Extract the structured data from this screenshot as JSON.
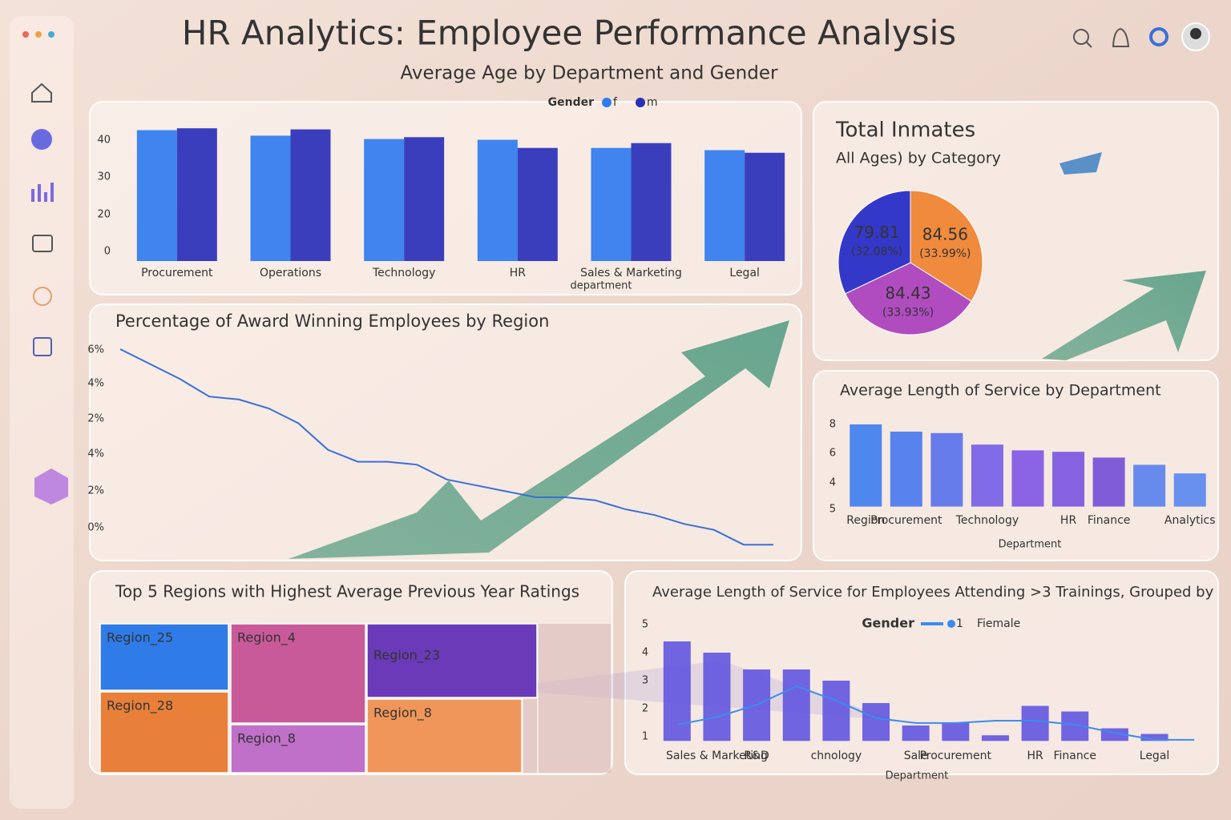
{
  "header": {
    "title": "HR Analytics: Employee Performance Analysis",
    "subtitle": "Average Age by Department and Gender"
  },
  "chart_data": [
    {
      "type": "bar",
      "legend_title": "Gender",
      "xlabel": "department",
      "categories": [
        "Procurement",
        "Operations",
        "Technology",
        "HR",
        "Sales & Marketing",
        "Legal"
      ],
      "series": [
        {
          "name": "f",
          "color": "#2f7bf0",
          "values": [
            42.8,
            41.3,
            40.4,
            40.2,
            38.0,
            37.4
          ]
        },
        {
          "name": "m",
          "color": "#2a2fb8",
          "values": [
            43.3,
            43.0,
            40.9,
            38.0,
            39.3,
            36.7
          ]
        }
      ],
      "ylim": [
        7.5,
        45.5
      ],
      "y_axis_labels": [
        "0",
        "20",
        "30",
        "40"
      ]
    },
    {
      "type": "line",
      "title": "Percentage of Award Winning Employees by Region",
      "categories": [
        null,
        null,
        null,
        null,
        null,
        null,
        null,
        null,
        null,
        null,
        null,
        null,
        null,
        null,
        null,
        null,
        null,
        null,
        null,
        null,
        null,
        null,
        null
      ],
      "series": [
        {
          "color": "#3a6fd8",
          "values": [
            6.0,
            5.5,
            5.0,
            4.4,
            4.3,
            4.0,
            3.5,
            2.6,
            2.2,
            2.2,
            2.1,
            1.6,
            1.4,
            1.2,
            1.0,
            1.0,
            0.9,
            0.6,
            0.4,
            0.1,
            -0.1,
            -0.6,
            -0.6
          ]
        }
      ],
      "ylim": [
        -1,
        6.5
      ],
      "y_axis_labels": [
        "6%",
        "4%",
        "2%",
        "4%",
        "2%",
        "0%"
      ]
    },
    {
      "type": "pie",
      "title": "Total Inmates",
      "subtitle": "All Ages) by Category",
      "categories": [
        null,
        null,
        null
      ],
      "values": [
        84.56,
        84.43,
        79.81
      ],
      "percent_labels": [
        "(33.99%)",
        "(33.93%)",
        "(32.08%)"
      ],
      "colors": [
        "#f08a3c",
        "#b04cc0",
        "#3438c8"
      ]
    },
    {
      "type": "bar",
      "title": "Average Length of Service by Department",
      "xlabel": "Department",
      "categories": [
        "Region",
        "Procurement",
        null,
        "Technology",
        null,
        "HR",
        "Finance",
        null,
        "Analytics"
      ],
      "series": [
        {
          "colors": [
            "#3f7ff0",
            "#4a78ee",
            "#5a72ec",
            "#7660e6",
            "#8058e4",
            "#7a56e0",
            "#7450d8",
            "#5a82ee",
            "#5a88f0"
          ],
          "values": [
            8.0,
            7.5,
            7.4,
            6.6,
            6.2,
            6.1,
            5.7,
            5.2,
            4.6
          ]
        }
      ],
      "ylim": [
        2.3,
        8.3
      ],
      "y_axis_labels": [
        "8",
        "6",
        "4",
        "5"
      ]
    },
    {
      "type": "treemap",
      "title": "Top 5 Regions with Highest Average Previous Year Ratings",
      "categories": [
        "Region_25",
        "Region_4",
        "Region_23",
        "Region_28",
        "Region_8",
        "Region_8"
      ],
      "values": [
        13.3,
        20.8,
        19.5,
        16.2,
        10.1,
        17.8
      ],
      "colors": [
        "#2f7be8",
        "#c85a9a",
        "#6a3ab8",
        "#e8803a",
        "#c070c8",
        "#f0965a"
      ]
    },
    {
      "type": "combo",
      "title": "Average Length of Service for Employees Attending >3 Trainings, Grouped by",
      "legend_title": "Gender",
      "xlabel": "Department",
      "categories": [
        null,
        "Sales & Marketing",
        "R&D",
        null,
        "chnology",
        null,
        "Sale",
        "Procurement",
        null,
        "HR",
        "Finance",
        null,
        "Legal",
        null
      ],
      "series": [
        {
          "name": "Fiemale",
          "type": "bar",
          "color": "#6458e0",
          "values": [
            4.4,
            4.0,
            3.4,
            3.4,
            3.0,
            2.2,
            1.4,
            1.5,
            1.05,
            2.1,
            1.9,
            1.3,
            1.1,
            null
          ]
        },
        {
          "name": "1",
          "type": "line",
          "color": "#3b8cf0",
          "values": [
            1.43,
            1.7,
            2.14,
            2.8,
            2.29,
            1.66,
            1.49,
            1.49,
            1.57,
            1.57,
            1.43,
            1.14,
            0.89,
            0.89
          ]
        }
      ],
      "ylim": [
        0.85,
        5.1
      ],
      "yticks": [
        1,
        2,
        3,
        4,
        5
      ]
    }
  ]
}
